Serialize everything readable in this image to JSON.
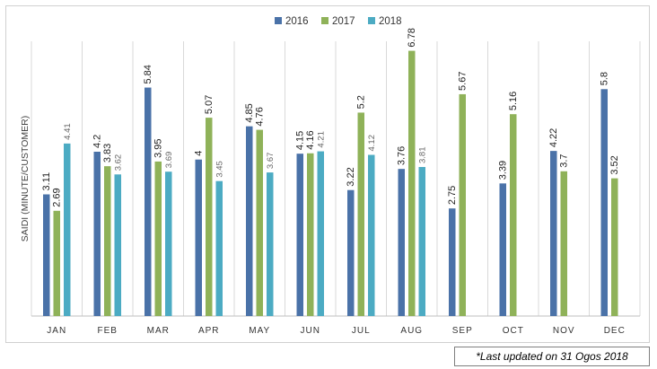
{
  "chart_data": {
    "type": "bar",
    "title": "",
    "xlabel": "",
    "ylabel": "SAIDI (MINUTE/CUSTOMER)",
    "ylim": [
      0,
      7
    ],
    "grid": "vertical category separators",
    "legend_position": "top-center",
    "categories": [
      "JAN",
      "FEB",
      "MAR",
      "APR",
      "MAY",
      "JUN",
      "JUL",
      "AUG",
      "SEP",
      "OCT",
      "NOV",
      "DEC"
    ],
    "series": [
      {
        "name": "2016",
        "color": "#4a72a8",
        "values": [
          3.11,
          4.2,
          5.84,
          4,
          4.85,
          4.15,
          3.22,
          3.76,
          2.75,
          3.39,
          4.22,
          5.8
        ],
        "labels": [
          "3.11",
          "4.2",
          "5.84",
          "4",
          "4.85",
          "4.15",
          "3.22",
          "3.76",
          "2.75",
          "3.39",
          "4.22",
          "5.8"
        ]
      },
      {
        "name": "2017",
        "color": "#8fb259",
        "values": [
          2.69,
          3.83,
          3.95,
          5.07,
          4.76,
          4.16,
          5.2,
          6.78,
          5.67,
          5.16,
          3.7,
          3.52
        ],
        "labels": [
          "2.69",
          "3.83",
          "3.95",
          "5.07",
          "4.76",
          "4.16",
          "5.2",
          "6.78",
          "5.67",
          "5.16",
          "3.7",
          "3.52"
        ]
      },
      {
        "name": "2018",
        "color": "#4cabc3",
        "values": [
          4.41,
          3.62,
          3.69,
          3.45,
          3.67,
          4.21,
          4.12,
          3.81,
          null,
          null,
          null,
          null
        ],
        "labels": [
          "4.41",
          "3.62",
          "3.69",
          "3.45",
          "3.67",
          "4.21",
          "4.12",
          "3.81",
          null,
          null,
          null,
          null
        ]
      }
    ]
  },
  "note": "*Last updated on 31 Ogos 2018"
}
